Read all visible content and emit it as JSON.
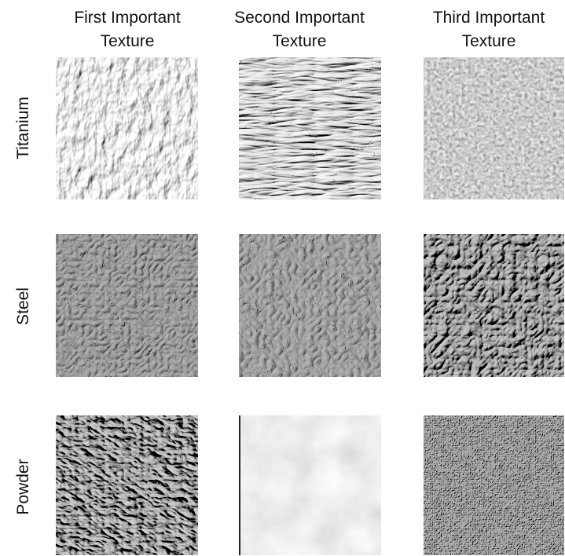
{
  "columns": [
    "First Important Texture",
    "Second Important Texture",
    "Third Important Texture"
  ],
  "rows": [
    "Titanium",
    "Steel",
    "Powder"
  ]
}
